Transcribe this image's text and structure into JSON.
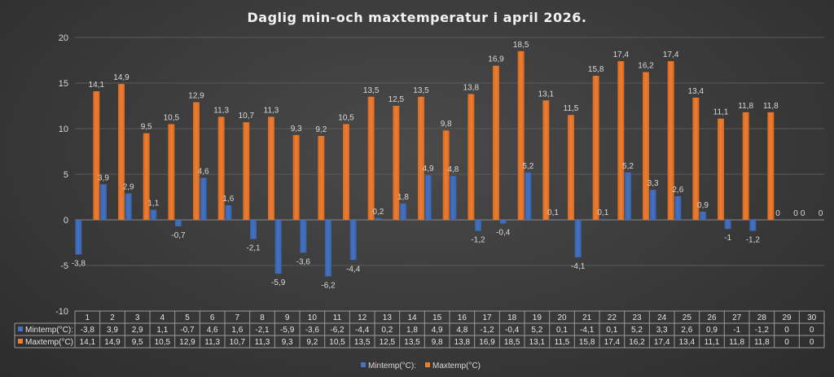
{
  "chart_data": {
    "type": "bar",
    "title": "Daglig min-och maxtemperatur i april 2026.",
    "categories": [
      "1",
      "2",
      "3",
      "4",
      "5",
      "6",
      "7",
      "8",
      "9",
      "10",
      "11",
      "12",
      "13",
      "14",
      "15",
      "16",
      "17",
      "18",
      "19",
      "20",
      "21",
      "22",
      "23",
      "24",
      "25",
      "26",
      "27",
      "28",
      "29",
      "30"
    ],
    "series": [
      {
        "name": "Mintemp(°C):",
        "color": "#4472c4",
        "values": [
          -3.8,
          3.9,
          2.9,
          1.1,
          -0.7,
          4.6,
          1.6,
          -2.1,
          -5.9,
          -3.6,
          -6.2,
          -4.4,
          0.2,
          1.8,
          4.9,
          4.8,
          -1.2,
          -0.4,
          5.2,
          0.1,
          -4.1,
          0.1,
          5.2,
          3.3,
          2.6,
          0.9,
          -1,
          -1.2,
          0,
          0
        ],
        "labels": [
          "-3,8",
          "3,9",
          "2,9",
          "1,1",
          "-0,7",
          "4,6",
          "1,6",
          "-2,1",
          "-5,9",
          "-3,6",
          "-6,2",
          "-4,4",
          "0,2",
          "1,8",
          "4,9",
          "4,8",
          "-1,2",
          "-0,4",
          "5,2",
          "0,1",
          "-4,1",
          "0,1",
          "5,2",
          "3,3",
          "2,6",
          "0,9",
          "-1",
          "-1,2",
          "0",
          "0"
        ]
      },
      {
        "name": "Maxtemp(°C)",
        "color": "#ed7d31",
        "values": [
          14.1,
          14.9,
          9.5,
          10.5,
          12.9,
          11.3,
          10.7,
          11.3,
          9.3,
          9.2,
          10.5,
          13.5,
          12.5,
          13.5,
          9.8,
          13.8,
          16.9,
          18.5,
          13.1,
          11.5,
          15.8,
          17.4,
          16.2,
          17.4,
          13.4,
          11.1,
          11.8,
          11.8,
          0,
          0
        ],
        "labels": [
          "14,1",
          "14,9",
          "9,5",
          "10,5",
          "12,9",
          "11,3",
          "10,7",
          "11,3",
          "9,3",
          "9,2",
          "10,5",
          "13,5",
          "12,5",
          "13,5",
          "9,8",
          "13,8",
          "16,9",
          "18,5",
          "13,1",
          "11,5",
          "15,8",
          "17,4",
          "16,2",
          "17,4",
          "13,4",
          "11,1",
          "11,8",
          "11,8",
          "0",
          "0"
        ]
      }
    ],
    "ylim": [
      -10,
      20
    ],
    "yticks": [
      "20",
      "15",
      "10",
      "5",
      "0",
      "-5",
      "-10"
    ],
    "grid": true,
    "legend": "bottom",
    "data_table": true
  }
}
